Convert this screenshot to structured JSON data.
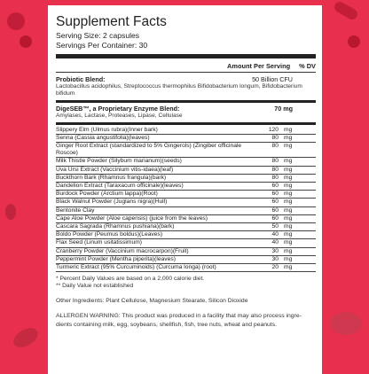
{
  "title": "Supplement Facts",
  "serving_size": "Serving Size: 2 capsules",
  "servings_per_container": "Servings Per Container: 30",
  "col_amount": "Amount Per Serving",
  "col_dv": "% DV",
  "probiotic": {
    "name": "Probiotic Blend:",
    "amount": "50 Billion CFU",
    "desc": "Lactobacillus acidophilus, Streptococcus thermophilus Bifidobacterium longum, Bifidobacterium bifidum"
  },
  "enzyme": {
    "name": "DigeSEB™, a Proprietary Enzyme Blend:",
    "amount": "70 mg",
    "desc": "Amylases, Lactase, Proteases, Lipase, Cellulase"
  },
  "ingredients": [
    {
      "name": "Slippery Elm (Ulmus rubra)(Inner bark)",
      "q": "120",
      "u": "mg"
    },
    {
      "name": "Senna (Cassia angustifolia)(leaves)",
      "q": "80",
      "u": "mg"
    },
    {
      "name": "Ginger Root Extract (standardized to 5% Gingerols) (Zingiber officinale Roscoe)",
      "q": "80",
      "u": "mg"
    },
    {
      "name": "Milk Thistle Powder (Silybum marianum)(seeds)",
      "q": "80",
      "u": "mg"
    },
    {
      "name": "Uva Ursi Extract (Vaccinium vitis-idaea)(leaf)",
      "q": "80",
      "u": "mg"
    },
    {
      "name": "Buckthorn Bark (Rhamnus frangula)(bark)",
      "q": "80",
      "u": "mg"
    },
    {
      "name": "Dandelion Extract (Taraxacum officinale)(leaves)",
      "q": "60",
      "u": "mg"
    },
    {
      "name": "Burdock Powder (Arctium lappa)(Root)",
      "q": "60",
      "u": "mg"
    },
    {
      "name": "Black Walnut Powder (Juglans nigra)(Hull)",
      "q": "60",
      "u": "mg"
    },
    {
      "name": "Bentonite Clay",
      "q": "60",
      "u": "mg"
    },
    {
      "name": "Cape Aloe Powder (Aloe capensis) (juice from the leaves)",
      "q": "60",
      "u": "mg"
    },
    {
      "name": "Cascara Sagrada (Rhamnus pushiana)(bark)",
      "q": "50",
      "u": "mg"
    },
    {
      "name": "Boldo Powder (Peumus boldus)(Leaves)",
      "q": "40",
      "u": "mg"
    },
    {
      "name": "Flax Seed (Linum usitatissimum)",
      "q": "40",
      "u": "mg"
    },
    {
      "name": "Cranberry Powder (Vaccinium macrocarpon)(Fruit)",
      "q": "30",
      "u": "mg"
    },
    {
      "name": "Peppermint Powder (Mentha piperita)(leaves)",
      "q": "30",
      "u": "mg"
    },
    {
      "name": "Turmeric Extract (95% Curcuminoids) (Curcuma longa) (root)",
      "q": "20",
      "u": "mg"
    }
  ],
  "footnote1": "* Percent Daily Values are based on a 2,000 calorie diet.",
  "footnote2": "** Daily Value not established",
  "other": "Other Ingredients: Plant Cellulose, Magnesium Stearate, Silicon Dioxide",
  "allergy": "ALLERGEN WARNING: This product was produced in a facility that may also process ingre-dients containing milk, egg, soybeans, shellfish, fish, tree nuts, wheat and peanuts.",
  "colors": {
    "background": "#e8304e",
    "label": "#ffffff",
    "text": "#222222"
  }
}
